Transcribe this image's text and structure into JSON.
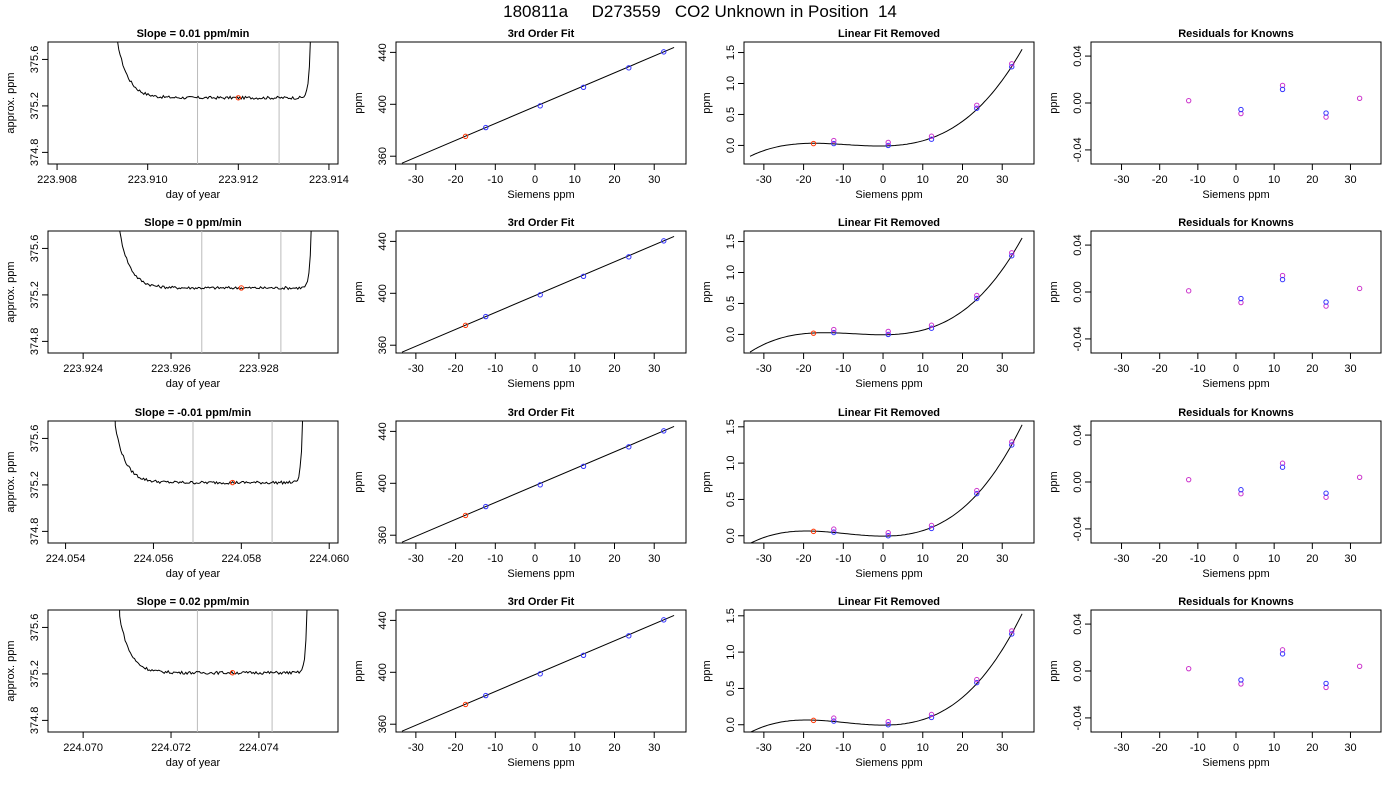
{
  "page": {
    "title": "180811a     D273559   CO2 Unknown in Position  14"
  },
  "chart_data": {
    "type": "grid",
    "rows": [
      {
        "trace": {
          "type": "line",
          "title": "Slope =  0.01  ppm/min",
          "xlabel": "day of year",
          "ylabel": "approx. ppm",
          "xlim": [
            223.9078,
            223.9142
          ],
          "ylim": [
            374.7,
            375.75
          ],
          "xticks": [
            223.908,
            223.91,
            223.912,
            223.914
          ],
          "xticklabels": [
            "223.908",
            "223.910",
            "223.912",
            "223.914"
          ],
          "yticks": [
            374.8,
            375.2,
            375.6
          ],
          "yticklabels": [
            "374.8",
            "375.2",
            "375.6"
          ],
          "vlines": [
            223.9111,
            223.9129
          ],
          "window": [
            223.9093,
            223.9136
          ],
          "baseline": 375.27,
          "marker": {
            "x": 223.912,
            "y": 375.27
          }
        },
        "fit": {
          "type": "scatter",
          "title": "3rd Order Fit",
          "xlabel": "Siemens ppm",
          "ylabel": "ppm",
          "xlim": [
            -35,
            38
          ],
          "ylim": [
            354,
            448
          ],
          "xticks": [
            -30,
            -20,
            -10,
            0,
            10,
            20,
            30
          ],
          "yticks": [
            360,
            400,
            440
          ],
          "knowns": [
            {
              "x": -12.4,
              "y": 382.1
            },
            {
              "x": 1.3,
              "y": 398.8
            },
            {
              "x": 12.2,
              "y": 413.1
            },
            {
              "x": 23.6,
              "y": 428.1
            },
            {
              "x": 32.4,
              "y": 440.4
            }
          ],
          "unknown": {
            "x": -17.5,
            "y": 375.3
          }
        },
        "linear_removed": {
          "type": "scatter",
          "title": "Linear Fit Removed",
          "xlabel": "Siemens ppm",
          "ylabel": "ppm",
          "xlim": [
            -35,
            38
          ],
          "ylim": [
            -0.3,
            1.67
          ],
          "xticks": [
            -30,
            -20,
            -10,
            0,
            10,
            20,
            30
          ],
          "yticks": [
            0,
            0.5,
            1,
            1.5
          ],
          "yticklabels": [
            "0.0",
            "0.5",
            "1.0",
            "1.5"
          ],
          "knowns": [
            {
              "x": -12.4,
              "y": 0.03
            },
            {
              "x": 1.3,
              "y": 0.0
            },
            {
              "x": 12.2,
              "y": 0.1
            },
            {
              "x": 23.6,
              "y": 0.6
            },
            {
              "x": 32.4,
              "y": 1.27
            }
          ],
          "unknown": {
            "x": -17.5,
            "y": 0.03
          }
        },
        "residuals": {
          "type": "scatter",
          "title": "Residuals for Knowns",
          "xlabel": "Siemens ppm",
          "ylabel": "ppm",
          "xlim": [
            -38,
            38
          ],
          "ylim": [
            -0.052,
            0.052
          ],
          "xticks": [
            -30,
            -20,
            -10,
            0,
            10,
            20,
            30
          ],
          "yticks": [
            -0.04,
            0,
            0.04
          ],
          "yticklabels": [
            "-0.04",
            "0.00",
            "0.04"
          ],
          "points": [
            {
              "x": -12.4,
              "y": 0.002
            },
            {
              "x": 1.3,
              "y": -0.009
            },
            {
              "x": 12.2,
              "y": 0.015
            },
            {
              "x": 23.6,
              "y": -0.012
            },
            {
              "x": 32.4,
              "y": 0.004
            }
          ]
        }
      },
      {
        "trace": {
          "type": "line",
          "title": "Slope =  0  ppm/min",
          "xlabel": "day of year",
          "ylabel": "approx. ppm",
          "xlim": [
            223.9232,
            223.9298
          ],
          "ylim": [
            374.7,
            375.75
          ],
          "xticks": [
            223.924,
            223.926,
            223.928
          ],
          "xticklabels": [
            "223.924",
            "223.926",
            "223.928"
          ],
          "yticks": [
            374.8,
            375.2,
            375.6
          ],
          "yticklabels": [
            "374.8",
            "375.2",
            "375.6"
          ],
          "vlines": [
            223.9267,
            223.9285
          ],
          "window": [
            223.9248,
            223.9292
          ],
          "baseline": 375.26,
          "marker": {
            "x": 223.9276,
            "y": 375.26
          }
        },
        "fit": {
          "type": "scatter",
          "title": "3rd Order Fit",
          "xlabel": "Siemens ppm",
          "ylabel": "ppm",
          "xlim": [
            -35,
            38
          ],
          "ylim": [
            354,
            448
          ],
          "xticks": [
            -30,
            -20,
            -10,
            0,
            10,
            20,
            30
          ],
          "yticks": [
            360,
            400,
            440
          ],
          "knowns": [
            {
              "x": -12.4,
              "y": 382.1
            },
            {
              "x": 1.3,
              "y": 398.8
            },
            {
              "x": 12.2,
              "y": 413.1
            },
            {
              "x": 23.6,
              "y": 428.1
            },
            {
              "x": 32.4,
              "y": 440.4
            }
          ],
          "unknown": {
            "x": -17.5,
            "y": 375.3
          }
        },
        "linear_removed": {
          "type": "scatter",
          "title": "Linear Fit Removed",
          "xlabel": "Siemens ppm",
          "ylabel": "ppm",
          "xlim": [
            -35,
            38
          ],
          "ylim": [
            -0.3,
            1.67
          ],
          "xticks": [
            -30,
            -20,
            -10,
            0,
            10,
            20,
            30
          ],
          "yticks": [
            0,
            0.5,
            1,
            1.5
          ],
          "yticklabels": [
            "0.0",
            "0.5",
            "1.0",
            "1.5"
          ],
          "knowns": [
            {
              "x": -12.4,
              "y": 0.03
            },
            {
              "x": 1.3,
              "y": 0.0
            },
            {
              "x": 12.2,
              "y": 0.1
            },
            {
              "x": 23.6,
              "y": 0.58
            },
            {
              "x": 32.4,
              "y": 1.27
            }
          ],
          "unknown": {
            "x": -17.5,
            "y": 0.02
          }
        },
        "residuals": {
          "type": "scatter",
          "title": "Residuals for Knowns",
          "xlabel": "Siemens ppm",
          "ylabel": "ppm",
          "xlim": [
            -38,
            38
          ],
          "ylim": [
            -0.052,
            0.052
          ],
          "xticks": [
            -30,
            -20,
            -10,
            0,
            10,
            20,
            30
          ],
          "yticks": [
            -0.04,
            0,
            0.04
          ],
          "yticklabels": [
            "-0.04",
            "0.00",
            "0.04"
          ],
          "points": [
            {
              "x": -12.4,
              "y": 0.001
            },
            {
              "x": 1.3,
              "y": -0.009
            },
            {
              "x": 12.2,
              "y": 0.014
            },
            {
              "x": 23.6,
              "y": -0.012
            },
            {
              "x": 32.4,
              "y": 0.003
            }
          ]
        }
      },
      {
        "trace": {
          "type": "line",
          "title": "Slope =  -0.01  ppm/min",
          "xlabel": "day of year",
          "ylabel": "approx. ppm",
          "xlim": [
            224.0536,
            224.0602
          ],
          "ylim": [
            374.7,
            375.75
          ],
          "xticks": [
            224.054,
            224.056,
            224.058,
            224.06
          ],
          "xticklabels": [
            "224.054",
            "224.056",
            "224.058",
            "224.060"
          ],
          "yticks": [
            374.8,
            375.2,
            375.6
          ],
          "yticklabels": [
            "374.8",
            "375.2",
            "375.6"
          ],
          "vlines": [
            224.0569,
            224.0587
          ],
          "window": [
            224.0551,
            224.0594
          ],
          "baseline": 375.22,
          "marker": {
            "x": 224.0578,
            "y": 375.22
          }
        },
        "fit": {
          "type": "scatter",
          "title": "3rd Order Fit",
          "xlabel": "Siemens ppm",
          "ylabel": "ppm",
          "xlim": [
            -35,
            38
          ],
          "ylim": [
            354,
            448
          ],
          "xticks": [
            -30,
            -20,
            -10,
            0,
            10,
            20,
            30
          ],
          "yticks": [
            360,
            400,
            440
          ],
          "knowns": [
            {
              "x": -12.4,
              "y": 382.1
            },
            {
              "x": 1.3,
              "y": 398.8
            },
            {
              "x": 12.2,
              "y": 413.1
            },
            {
              "x": 23.6,
              "y": 428.1
            },
            {
              "x": 32.4,
              "y": 440.4
            }
          ],
          "unknown": {
            "x": -17.5,
            "y": 375.2
          }
        },
        "linear_removed": {
          "type": "scatter",
          "title": "Linear Fit Removed",
          "xlabel": "Siemens ppm",
          "ylabel": "ppm",
          "xlim": [
            -35,
            38
          ],
          "ylim": [
            -0.1,
            1.58
          ],
          "xticks": [
            -30,
            -20,
            -10,
            0,
            10,
            20,
            30
          ],
          "yticks": [
            0,
            0.5,
            1,
            1.5
          ],
          "yticklabels": [
            "0.0",
            "0.5",
            "1.0",
            "1.5"
          ],
          "knowns": [
            {
              "x": -12.4,
              "y": 0.05
            },
            {
              "x": 1.3,
              "y": 0.0
            },
            {
              "x": 12.2,
              "y": 0.1
            },
            {
              "x": 23.6,
              "y": 0.58
            },
            {
              "x": 32.4,
              "y": 1.25
            }
          ],
          "unknown": {
            "x": -17.5,
            "y": 0.06
          }
        },
        "residuals": {
          "type": "scatter",
          "title": "Residuals for Knowns",
          "xlabel": "Siemens ppm",
          "ylabel": "ppm",
          "xlim": [
            -38,
            38
          ],
          "ylim": [
            -0.052,
            0.052
          ],
          "xticks": [
            -30,
            -20,
            -10,
            0,
            10,
            20,
            30
          ],
          "yticks": [
            -0.04,
            0,
            0.04
          ],
          "yticklabels": [
            "-0.04",
            "0.00",
            "0.04"
          ],
          "points": [
            {
              "x": -12.4,
              "y": 0.002
            },
            {
              "x": 1.3,
              "y": -0.01
            },
            {
              "x": 12.2,
              "y": 0.016
            },
            {
              "x": 23.6,
              "y": -0.013
            },
            {
              "x": 32.4,
              "y": 0.004
            }
          ]
        }
      },
      {
        "trace": {
          "type": "line",
          "title": "Slope =  0.02  ppm/min",
          "xlabel": "day of year",
          "ylabel": "approx. ppm",
          "xlim": [
            224.0692,
            224.0758
          ],
          "ylim": [
            374.7,
            375.75
          ],
          "xticks": [
            224.07,
            224.072,
            224.074
          ],
          "xticklabels": [
            "224.070",
            "224.072",
            "224.074"
          ],
          "yticks": [
            374.8,
            375.2,
            375.6
          ],
          "yticklabels": [
            "374.8",
            "375.2",
            "375.6"
          ],
          "vlines": [
            224.0726,
            224.0743
          ],
          "window": [
            224.0708,
            224.0751
          ],
          "baseline": 375.21,
          "marker": {
            "x": 224.0734,
            "y": 375.21
          }
        },
        "fit": {
          "type": "scatter",
          "title": "3rd Order Fit",
          "xlabel": "Siemens ppm",
          "ylabel": "ppm",
          "xlim": [
            -35,
            38
          ],
          "ylim": [
            354,
            448
          ],
          "xticks": [
            -30,
            -20,
            -10,
            0,
            10,
            20,
            30
          ],
          "yticks": [
            360,
            400,
            440
          ],
          "knowns": [
            {
              "x": -12.4,
              "y": 382.1
            },
            {
              "x": 1.3,
              "y": 398.8
            },
            {
              "x": 12.2,
              "y": 413.1
            },
            {
              "x": 23.6,
              "y": 428.1
            },
            {
              "x": 32.4,
              "y": 440.4
            }
          ],
          "unknown": {
            "x": -17.5,
            "y": 375.2
          }
        },
        "linear_removed": {
          "type": "scatter",
          "title": "Linear Fit Removed",
          "xlabel": "Siemens ppm",
          "ylabel": "ppm",
          "xlim": [
            -35,
            38
          ],
          "ylim": [
            -0.1,
            1.58
          ],
          "xticks": [
            -30,
            -20,
            -10,
            0,
            10,
            20,
            30
          ],
          "yticks": [
            0,
            0.5,
            1,
            1.5
          ],
          "yticklabels": [
            "0.0",
            "0.5",
            "1.0",
            "1.5"
          ],
          "knowns": [
            {
              "x": -12.4,
              "y": 0.05
            },
            {
              "x": 1.3,
              "y": 0.0
            },
            {
              "x": 12.2,
              "y": 0.1
            },
            {
              "x": 23.6,
              "y": 0.58
            },
            {
              "x": 32.4,
              "y": 1.25
            }
          ],
          "unknown": {
            "x": -17.5,
            "y": 0.06
          }
        },
        "residuals": {
          "type": "scatter",
          "title": "Residuals for Knowns",
          "xlabel": "Siemens ppm",
          "ylabel": "ppm",
          "xlim": [
            -38,
            38
          ],
          "ylim": [
            -0.052,
            0.052
          ],
          "xticks": [
            -30,
            -20,
            -10,
            0,
            10,
            20,
            30
          ],
          "yticks": [
            -0.04,
            0,
            0.04
          ],
          "yticklabels": [
            "-0.04",
            "0.00",
            "0.04"
          ],
          "points": [
            {
              "x": -12.4,
              "y": 0.002
            },
            {
              "x": 1.3,
              "y": -0.011
            },
            {
              "x": 12.2,
              "y": 0.018
            },
            {
              "x": 23.6,
              "y": -0.014
            },
            {
              "x": 32.4,
              "y": 0.004
            }
          ]
        }
      }
    ],
    "colors": {
      "known": "#3333ff",
      "unknown": "#ff3300",
      "secondary": "#cc33cc",
      "vline": "#bbbbbb",
      "line": "#000000"
    }
  }
}
